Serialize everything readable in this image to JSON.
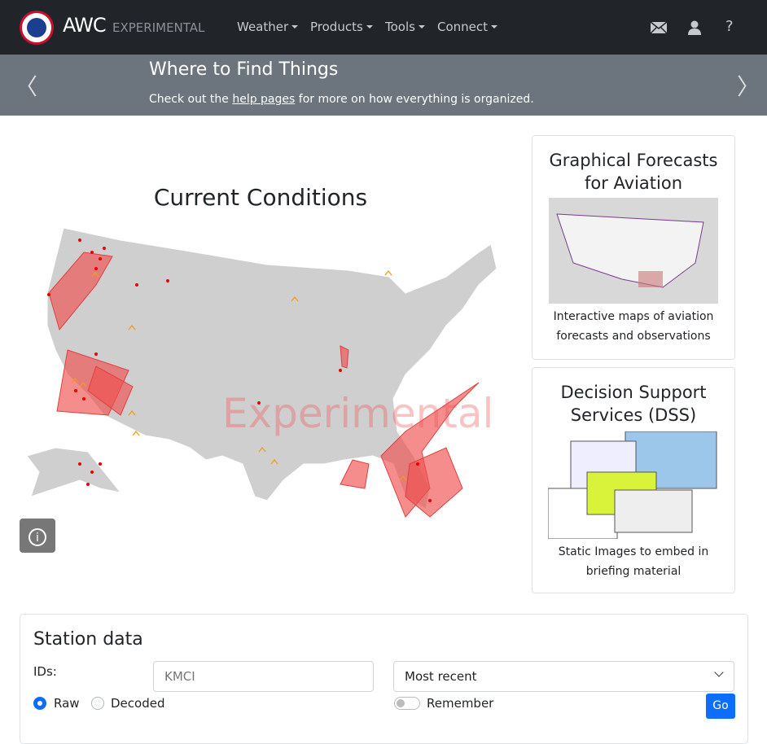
{
  "nav": {
    "brand": "AWC",
    "brand_sub": "EXPERIMENTAL",
    "menus": [
      "Weather",
      "Products",
      "Tools",
      "Connect"
    ],
    "icons": [
      "mail-icon",
      "user-icon",
      "help-icon"
    ],
    "help_glyph": "?"
  },
  "carousel": {
    "title": "Where to Find Things",
    "text_before": "Check out the ",
    "link": "help pages",
    "text_after": " for more on how everything is organized."
  },
  "map": {
    "title": "Current Conditions",
    "watermark": "Experimental",
    "info_glyph": "i"
  },
  "cards": [
    {
      "title_l1": "Graphical Forecasts",
      "title_l2": "for Aviation",
      "desc_l1": "Interactive maps of aviation",
      "desc_l2": "forecasts and observations"
    },
    {
      "title_l1": "Decision Support",
      "title_l2": "Services (DSS)",
      "desc_l1": "Static Images to embed in",
      "desc_l2": "briefing material"
    }
  ],
  "station": {
    "title": "Station data",
    "ids_label": "IDs:",
    "ids_placeholder": "KMCI",
    "time_select": "Most recent",
    "raw": "Raw",
    "decoded": "Decoded",
    "remember": "Remember",
    "go": "Go",
    "format_selected": "Raw"
  },
  "colors": {
    "navbar": "#212529",
    "carousel": "#6c757d",
    "accent": "#0d6efd",
    "sigmet": "#f05050"
  }
}
